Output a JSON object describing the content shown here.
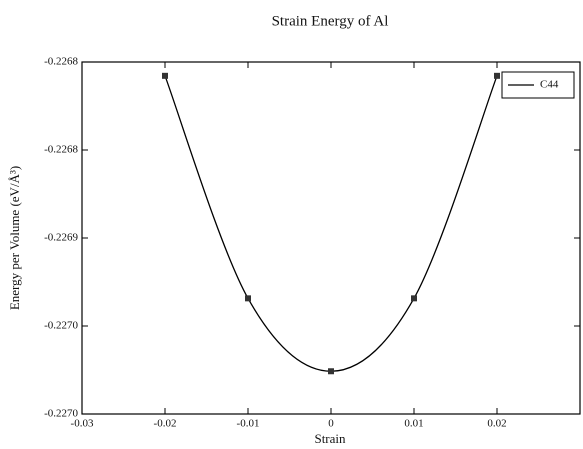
{
  "chart_data": {
    "type": "line",
    "title": "Strain Energy of Al",
    "x_label": "Strain",
    "y_label": "Energy per Volume (eV/Å³)",
    "x": [
      -0.02,
      -0.01,
      0,
      0.01,
      0.02
    ],
    "series": [
      {
        "name": "C44",
        "color": "#000000",
        "values": [
          -0.226771,
          -0.226948,
          -0.227006,
          -0.226948,
          -0.226771
        ]
      }
    ],
    "xlim": [
      -0.03,
      0.03
    ],
    "xticks": [
      -0.03,
      -0.02,
      -0.01,
      0,
      0.01,
      0.02
    ],
    "ylim": [
      -0.22704,
      -0.22676
    ],
    "yticks": [
      {
        "value": -0.22704,
        "label": "-0.2270"
      },
      {
        "value": -0.22697,
        "label": "-0.2270"
      },
      {
        "value": -0.2269,
        "label": "-0.2269"
      },
      {
        "value": -0.22683,
        "label": "-0.2268"
      },
      {
        "value": -0.22676,
        "label": "-0.2268"
      }
    ],
    "legend": "upper right",
    "grid": false
  }
}
